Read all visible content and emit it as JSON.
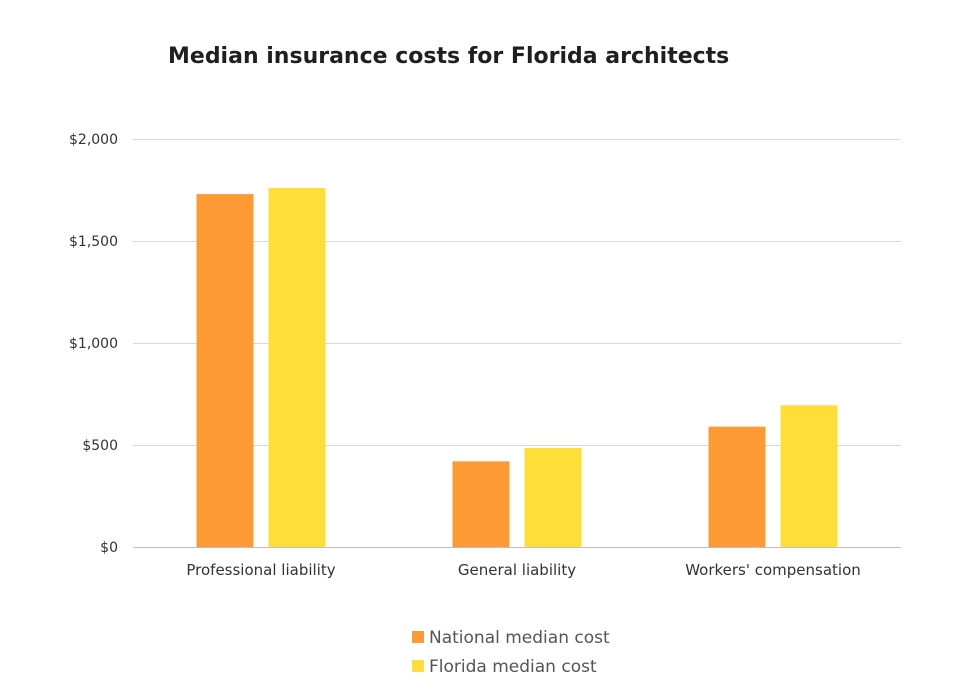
{
  "chart_data": {
    "type": "bar",
    "title": "Median insurance costs for Florida architects",
    "xlabel": "",
    "ylabel": "",
    "categories": [
      "Professional liability",
      "General liability",
      "Workers' compensation"
    ],
    "series": [
      {
        "name": "National median cost",
        "values": [
          1730,
          420,
          590
        ],
        "color": "#FF9933"
      },
      {
        "name": "Florida median cost",
        "values": [
          1760,
          485,
          695
        ],
        "color": "#FFDE38"
      }
    ],
    "ylim": [
      0,
      2000
    ],
    "yticks": [
      0,
      500,
      1000,
      1500,
      2000
    ],
    "ytick_labels": [
      "$0",
      "$500",
      "$1,000",
      "$1,500",
      "$2,000"
    ],
    "grid": true,
    "legend_position": "bottom-center"
  }
}
